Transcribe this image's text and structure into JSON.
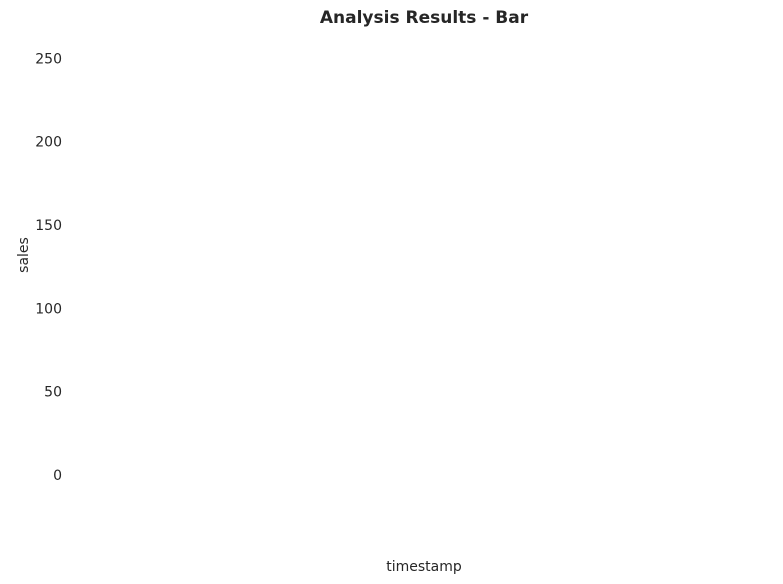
{
  "chart_data": {
    "type": "bar",
    "title": "Analysis Results - Bar",
    "xlabel": "timestamp",
    "ylabel": "sales",
    "ylim": [
      0,
      255
    ],
    "yticks": [
      0,
      50,
      100,
      150,
      200,
      250
    ],
    "grid": false,
    "legend": "none",
    "bar_color": "#4c72b0",
    "text_color": "#262626",
    "background": "#ffffff",
    "categories": [],
    "values": []
  }
}
